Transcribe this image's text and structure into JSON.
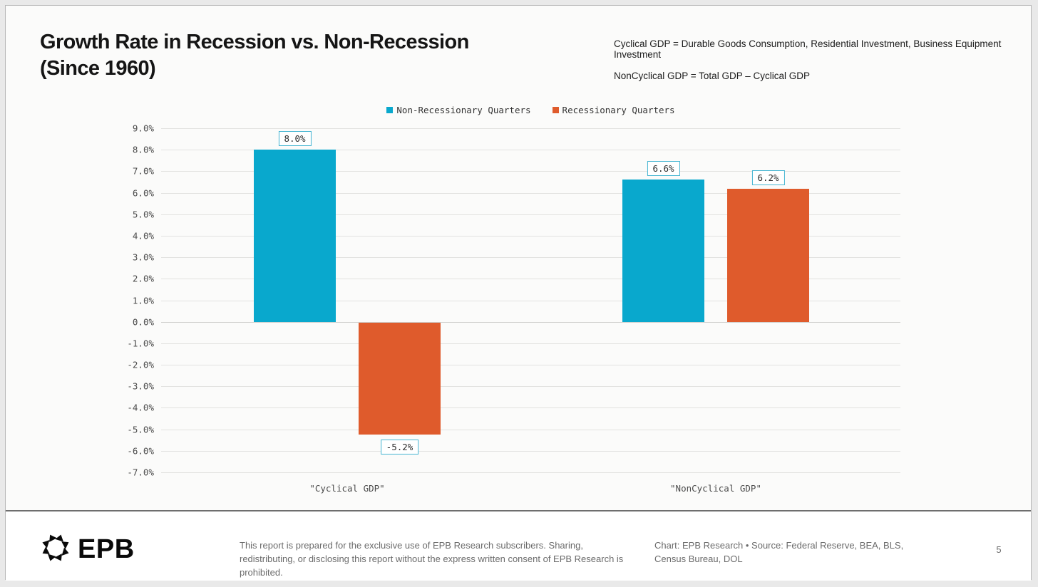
{
  "header": {
    "title_line1": "Growth Rate in Recession vs. Non-Recession",
    "title_line2": "(Since 1960)",
    "note_line1": "Cyclical GDP = Durable Goods Consumption, Residential Investment, Business Equipment Investment",
    "note_line2": "NonCyclical GDP = Total GDP – Cyclical GDP"
  },
  "chart_data": {
    "type": "bar",
    "title": "Growth Rate in Recession vs. Non-Recession (Since 1960)",
    "categories": [
      "\"Cyclical GDP\"",
      "\"NonCyclical GDP\""
    ],
    "series": [
      {
        "name": "Non-Recessionary Quarters",
        "color": "#09a8cd",
        "values": [
          8.0,
          6.6
        ],
        "value_labels": [
          "8.0%",
          "6.6%"
        ]
      },
      {
        "name": "Recessionary Quarters",
        "color": "#df5b2c",
        "values": [
          -5.2,
          6.2
        ],
        "value_labels": [
          "-5.2%",
          "6.2%"
        ]
      }
    ],
    "ylim": [
      -7.0,
      9.0
    ],
    "ytick_step": 1.0,
    "ytick_suffix": "%",
    "grid": true,
    "legend_position": "top-center",
    "value_label_box_border": "#45b5d2"
  },
  "footer": {
    "logo_text": "EPB",
    "logo_icon": "aperture-icon",
    "disclaimer": "This report is prepared for the exclusive use of EPB Research subscribers. Sharing, redistributing, or disclosing this report without the express written consent of EPB Research is prohibited.",
    "credit": "Chart: EPB Research  •  Source: Federal Reserve, BEA, BLS, Census Bureau, DOL",
    "page_number": "5"
  },
  "colors": {
    "non_recessionary": "#09a8cd",
    "recessionary": "#df5b2c",
    "gridline": "#e2e2e0",
    "divider": "#6e6e6e",
    "slide_bg": "#fbfbfa"
  }
}
